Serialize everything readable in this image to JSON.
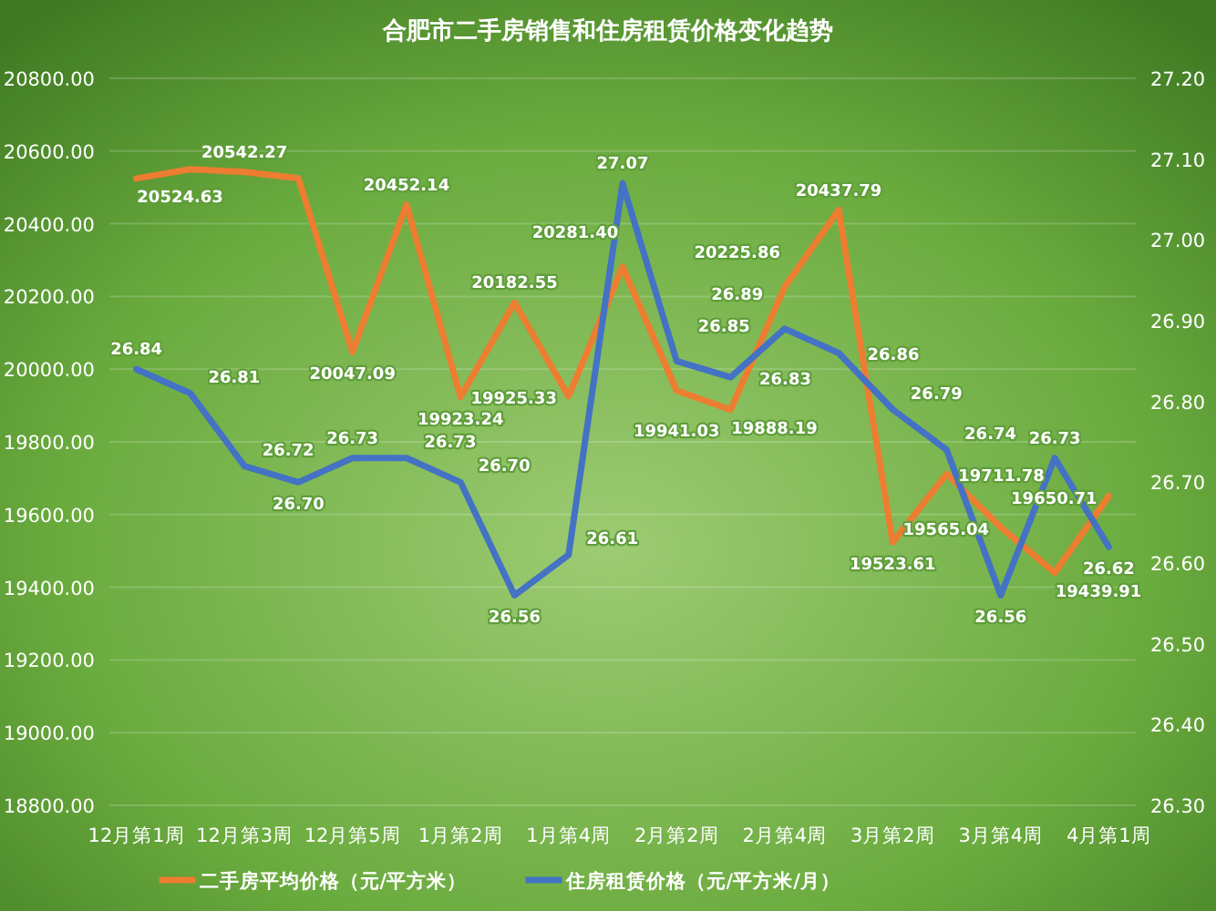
{
  "chart_data": {
    "type": "line",
    "title": "合肥市二手房销售和住房租赁价格变化趋势",
    "categories": [
      "12月第1周",
      null,
      "12月第3周",
      null,
      "12月第5周",
      null,
      "1月第2周",
      null,
      "1月第4周",
      null,
      "2月第2周",
      null,
      "2月第4周",
      null,
      "3月第2周",
      null,
      "3月第4周",
      null,
      "4月第1周"
    ],
    "series": [
      {
        "name": "二手房平均价格（元/平方米）",
        "color": "#ed7d31",
        "type": "line",
        "axis": "y",
        "values": [
          20524.63,
          20550,
          20542.27,
          20525,
          20047.09,
          20452.14,
          19923.24,
          20182.55,
          19925.33,
          20281.4,
          19941.03,
          19888.19,
          20225.86,
          20437.79,
          19523.61,
          19711.78,
          19565.04,
          19439.91,
          19650.71
        ],
        "value_labels": [
          "20524.63",
          null,
          "20542.27",
          null,
          "20047.09",
          "20452.14",
          "19923.24",
          "20182.55",
          "19925.33",
          "20281.40",
          "19941.03",
          "19888.19",
          "20225.86",
          "20437.79",
          "19523.61",
          "19711.78",
          "19565.04",
          "19439.91",
          "19650.71"
        ]
      },
      {
        "name": "住房租赁价格（元/平方米/月）",
        "color": "#4472c4",
        "type": "line",
        "axis": "y2",
        "values": [
          26.84,
          26.81,
          26.72,
          26.7,
          26.73,
          26.73,
          26.7,
          26.56,
          26.61,
          27.07,
          26.85,
          26.83,
          26.89,
          26.86,
          26.79,
          26.74,
          26.56,
          26.73,
          26.62
        ],
        "value_labels": [
          "26.84",
          "26.81",
          "26.72",
          "26.70",
          "26.73",
          "26.73",
          "26.70",
          "26.56",
          "26.61",
          "27.07",
          "26.85",
          "26.83",
          "26.89",
          "26.86",
          "26.79",
          "26.74",
          "26.56",
          "26.73",
          "26.62"
        ]
      }
    ],
    "ylim": [
      18800,
      20800
    ],
    "yticks": [
      {
        "value": 18800,
        "label": "18800.00"
      },
      {
        "value": 19000,
        "label": "19000.00"
      },
      {
        "value": 19200,
        "label": "19200.00"
      },
      {
        "value": 19400,
        "label": "19400.00"
      },
      {
        "value": 19600,
        "label": "19600.00"
      },
      {
        "value": 19800,
        "label": "19800.00"
      },
      {
        "value": 20000,
        "label": "20000.00"
      },
      {
        "value": 20200,
        "label": "20200.00"
      },
      {
        "value": 20400,
        "label": "20400.00"
      },
      {
        "value": 20600,
        "label": "20600.00"
      },
      {
        "value": 20800,
        "label": "20800.00"
      }
    ],
    "y2lim": [
      26.3,
      27.2
    ],
    "y2ticks": [
      {
        "value": 26.3,
        "label": "26.30"
      },
      {
        "value": 26.4,
        "label": "26.40"
      },
      {
        "value": 26.5,
        "label": "26.50"
      },
      {
        "value": 26.6,
        "label": "26.60"
      },
      {
        "value": 26.7,
        "label": "26.70"
      },
      {
        "value": 26.8,
        "label": "26.80"
      },
      {
        "value": 26.9,
        "label": "26.90"
      },
      {
        "value": 27.0,
        "label": "27.00"
      },
      {
        "value": 27.1,
        "label": "27.10"
      },
      {
        "value": 27.2,
        "label": "27.20"
      }
    ],
    "grid": "y",
    "legend": "bottom"
  }
}
